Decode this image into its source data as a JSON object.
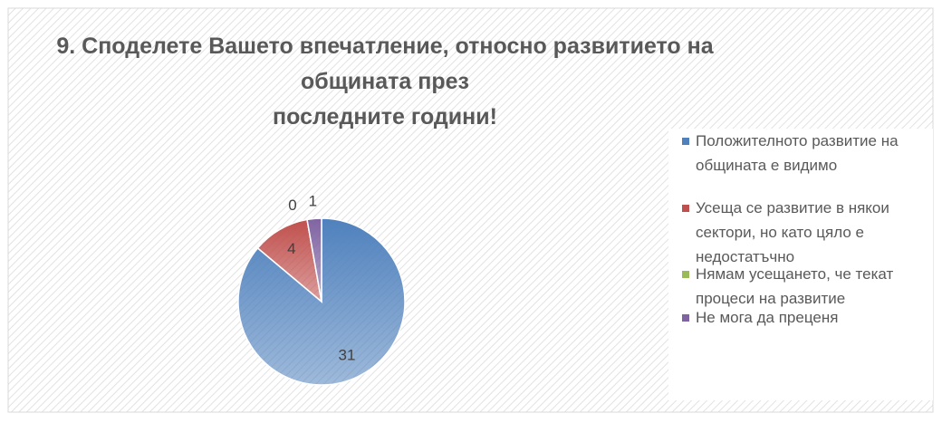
{
  "chart_data": {
    "type": "pie",
    "title": "9. Споделете Вашето впечатление, относно развитието на\nобщината през\nпоследните години!",
    "categories": [
      "Положителното развитие на общината е видимо",
      "Усеща се развитие в някои сектори, но като цяло е недостатъчно",
      "Нямам усещането, че текат процеси на развитие",
      "Не мога да преценя"
    ],
    "values": [
      31,
      4,
      0,
      1
    ],
    "colors": [
      "#4f81bd",
      "#c0504d",
      "#9bbb59",
      "#8064a2"
    ],
    "legend": "right"
  }
}
